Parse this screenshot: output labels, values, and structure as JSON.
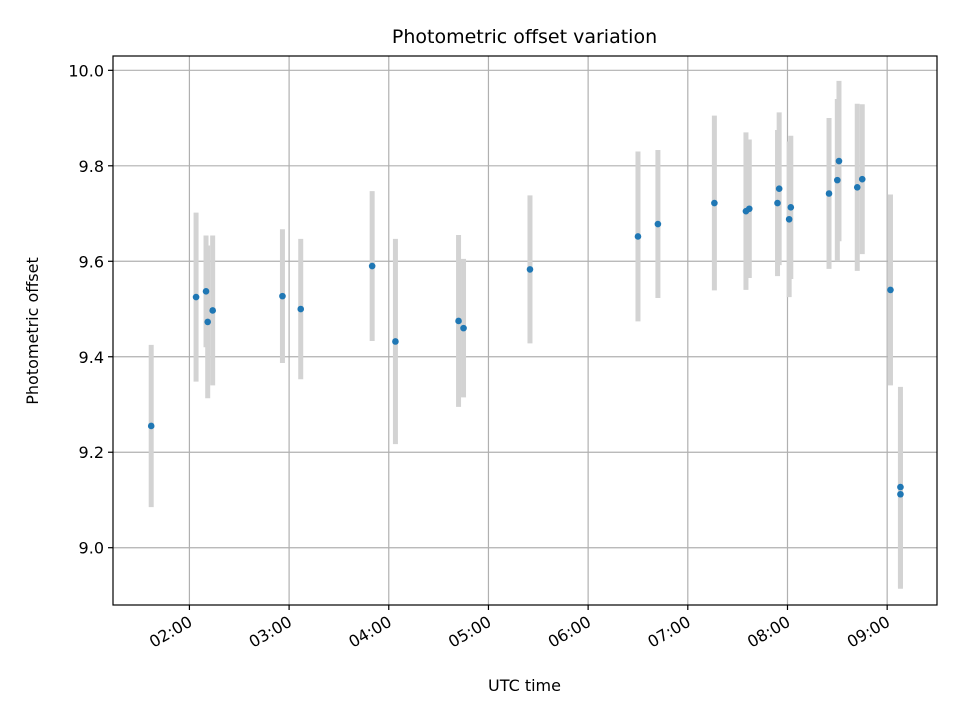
{
  "chart_data": {
    "type": "scatter",
    "title": "Photometric offset variation",
    "xlabel": "UTC time",
    "ylabel": "Photometric offset",
    "x_unit": "UTC time (HH:MM)",
    "xlim": [
      "01:14",
      "09:30"
    ],
    "ylim": [
      8.88,
      10.03
    ],
    "x_ticks": [
      "02:00",
      "03:00",
      "04:00",
      "05:00",
      "06:00",
      "07:00",
      "08:00",
      "09:00"
    ],
    "y_ticks": [
      9.0,
      9.2,
      9.4,
      9.6,
      9.8,
      10.0
    ],
    "y_tick_labels": [
      "9.0",
      "9.2",
      "9.4",
      "9.6",
      "9.8",
      "10.0"
    ],
    "grid": true,
    "point_color": "#1f77b4",
    "errorbar_color": "#d3d3d3",
    "points": [
      {
        "x": "01:37",
        "y": 9.255,
        "err": 0.17
      },
      {
        "x": "02:04",
        "y": 9.525,
        "err": 0.177
      },
      {
        "x": "02:10",
        "y": 9.537,
        "err": 0.117
      },
      {
        "x": "02:11",
        "y": 9.473,
        "err": 0.16
      },
      {
        "x": "02:14",
        "y": 9.497,
        "err": 0.157
      },
      {
        "x": "02:56",
        "y": 9.527,
        "err": 0.14
      },
      {
        "x": "03:07",
        "y": 9.5,
        "err": 0.147
      },
      {
        "x": "03:50",
        "y": 9.59,
        "err": 0.157
      },
      {
        "x": "04:04",
        "y": 9.432,
        "err": 0.215
      },
      {
        "x": "04:42",
        "y": 9.475,
        "err": 0.18
      },
      {
        "x": "04:45",
        "y": 9.46,
        "err": 0.145
      },
      {
        "x": "05:25",
        "y": 9.583,
        "err": 0.155
      },
      {
        "x": "06:30",
        "y": 9.652,
        "err": 0.178
      },
      {
        "x": "06:42",
        "y": 9.678,
        "err": 0.155
      },
      {
        "x": "07:16",
        "y": 9.722,
        "err": 0.183
      },
      {
        "x": "07:35",
        "y": 9.705,
        "err": 0.165
      },
      {
        "x": "07:37",
        "y": 9.71,
        "err": 0.145
      },
      {
        "x": "07:54",
        "y": 9.722,
        "err": 0.153
      },
      {
        "x": "07:55",
        "y": 9.752,
        "err": 0.16
      },
      {
        "x": "08:01",
        "y": 9.688,
        "err": 0.163
      },
      {
        "x": "08:02",
        "y": 9.713,
        "err": 0.15
      },
      {
        "x": "08:25",
        "y": 9.742,
        "err": 0.158
      },
      {
        "x": "08:30",
        "y": 9.77,
        "err": 0.17
      },
      {
        "x": "08:31",
        "y": 9.81,
        "err": 0.168
      },
      {
        "x": "08:42",
        "y": 9.755,
        "err": 0.175
      },
      {
        "x": "08:45",
        "y": 9.772,
        "err": 0.157
      },
      {
        "x": "09:02",
        "y": 9.54,
        "err": 0.2
      },
      {
        "x": "09:08",
        "y": 9.127,
        "err": 0.21
      },
      {
        "x": "09:08",
        "y": 9.112,
        "err": 0.198
      }
    ]
  }
}
